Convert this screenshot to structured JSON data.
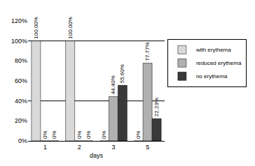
{
  "chart_data": {
    "type": "bar",
    "categories": [
      "1",
      "2",
      "3",
      "5"
    ],
    "xlabel": "days",
    "series": [
      {
        "name": "with erythema",
        "color": "#d9d9d9",
        "values": [
          100.0,
          100.0,
          0.0,
          0.0
        ],
        "value_labels": [
          "100.00%",
          "100.00%",
          "0%",
          "0%"
        ]
      },
      {
        "name": "reduced erythema",
        "color": "#b0b0b0",
        "values": [
          0.0,
          0.0,
          44.4,
          77.77
        ],
        "value_labels": [
          "0%",
          "0%",
          "44.40%",
          "77.77%"
        ]
      },
      {
        "name": "no erythema",
        "color": "#3a3a3a",
        "values": [
          0.0,
          0.0,
          55.6,
          22.23
        ],
        "value_labels": [
          "0%",
          "0%",
          "55.60%",
          "22.23%"
        ]
      }
    ],
    "ylim": [
      0,
      120
    ],
    "yticks": [
      {
        "value": 0,
        "label": "0%"
      },
      {
        "value": 20,
        "label": "20%"
      },
      {
        "value": 40,
        "label": "40%"
      },
      {
        "value": 60,
        "label": "60%"
      },
      {
        "value": 80,
        "label": "80%"
      },
      {
        "value": 100,
        "label": "100%"
      },
      {
        "value": 120,
        "label": "120%"
      }
    ],
    "hlines": [
      40,
      100
    ],
    "grid": false,
    "legend": "right",
    "data_labels": true
  }
}
